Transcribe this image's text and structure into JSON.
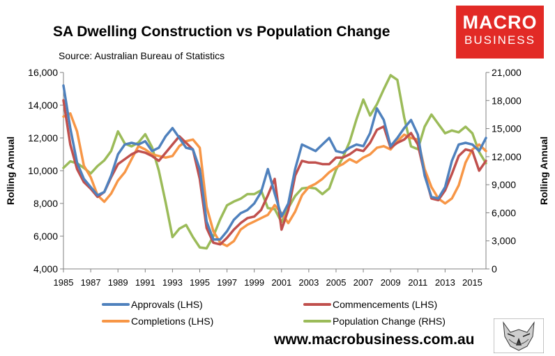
{
  "title": "SA Dwelling Construction vs Population Change",
  "subtitle": "Source: Australian Bureau of Statistics",
  "logo": {
    "line1": "MACRO",
    "line2": "BUSINESS"
  },
  "website": "www.macrobusiness.com.au",
  "colors": {
    "approvals": "#4f81bd",
    "commencements": "#c0504d",
    "completions": "#f79646",
    "population": "#9bbb59",
    "logo_bg": "#e22a26"
  },
  "chart_data": {
    "type": "line",
    "title": "SA Dwelling Construction vs Population Change",
    "xlabel": "",
    "ylabel": "Rolling Annual",
    "y2label": "Rolling Annual",
    "xlim": [
      1985,
      2016
    ],
    "ylim": [
      4000,
      16000
    ],
    "y2lim": [
      0,
      21000
    ],
    "x_ticks": [
      "1985",
      "1987",
      "1989",
      "1991",
      "1993",
      "1995",
      "1997",
      "1999",
      "2001",
      "2003",
      "2005",
      "2007",
      "2009",
      "2011",
      "2013",
      "2015"
    ],
    "y_ticks": [
      "4,000",
      "6,000",
      "8,000",
      "10,000",
      "12,000",
      "14,000",
      "16,000"
    ],
    "y2_ticks": [
      "0",
      "3,000",
      "6,000",
      "9,000",
      "12,000",
      "15,000",
      "18,000",
      "21,000"
    ],
    "series": [
      {
        "name": "Approvals (LHS)",
        "axis": "left",
        "color": "#4f81bd",
        "x": [
          1985,
          1985.5,
          1986,
          1986.5,
          1987,
          1987.5,
          1988,
          1988.5,
          1989,
          1989.5,
          1990,
          1990.5,
          1991,
          1991.5,
          1992,
          1992.5,
          1993,
          1993.5,
          1994,
          1994.5,
          1995,
          1995.5,
          1996,
          1996.5,
          1997,
          1997.5,
          1998,
          1998.5,
          1999,
          1999.5,
          2000,
          2000.5,
          2001,
          2001.5,
          2002,
          2002.5,
          2003,
          2003.5,
          2004,
          2004.5,
          2005,
          2005.5,
          2006,
          2006.5,
          2007,
          2007.5,
          2008,
          2008.5,
          2009,
          2009.5,
          2010,
          2010.5,
          2011,
          2011.5,
          2012,
          2012.5,
          2013,
          2013.5,
          2014,
          2014.5,
          2015,
          2015.5,
          2016
        ],
        "values": [
          15200,
          12600,
          10500,
          9500,
          9000,
          8500,
          8700,
          9700,
          11000,
          11600,
          11700,
          11600,
          11800,
          11200,
          11400,
          12100,
          12600,
          12000,
          11400,
          11300,
          10100,
          6900,
          5800,
          5800,
          6300,
          7000,
          7400,
          7600,
          8000,
          8700,
          10100,
          8600,
          7200,
          8000,
          10100,
          11600,
          11400,
          11200,
          11600,
          12000,
          11200,
          11100,
          11400,
          11600,
          11500,
          12300,
          13800,
          13100,
          11500,
          12000,
          12600,
          13100,
          12200,
          9700,
          8400,
          8300,
          9000,
          10600,
          11600,
          11700,
          11600,
          11200,
          12000
        ]
      },
      {
        "name": "Commencements (LHS)",
        "axis": "left",
        "color": "#c0504d",
        "x": [
          1985,
          1985.5,
          1986,
          1986.5,
          1987,
          1987.5,
          1988,
          1988.5,
          1989,
          1989.5,
          1990,
          1990.5,
          1991,
          1991.5,
          1992,
          1992.5,
          1993,
          1993.5,
          1994,
          1994.5,
          1995,
          1995.5,
          1996,
          1996.5,
          1997,
          1997.5,
          1998,
          1998.5,
          1999,
          1999.5,
          2000,
          2000.5,
          2001,
          2001.5,
          2002,
          2002.5,
          2003,
          2003.5,
          2004,
          2004.5,
          2005,
          2005.5,
          2006,
          2006.5,
          2007,
          2007.5,
          2008,
          2008.5,
          2009,
          2009.5,
          2010,
          2010.5,
          2011,
          2011.5,
          2012,
          2012.5,
          2013,
          2013.5,
          2014,
          2014.5,
          2015,
          2015.5,
          2016
        ],
        "values": [
          14300,
          11600,
          10100,
          9300,
          8900,
          8400,
          8700,
          9600,
          10400,
          10700,
          11000,
          11200,
          11100,
          10900,
          10600,
          11100,
          11600,
          12100,
          11700,
          11300,
          9500,
          6500,
          5600,
          5500,
          5900,
          6400,
          6800,
          7100,
          7200,
          7600,
          8500,
          9500,
          6400,
          7600,
          9700,
          10600,
          10500,
          10500,
          10400,
          10400,
          10800,
          10800,
          11000,
          11300,
          11200,
          11700,
          12500,
          12700,
          11400,
          11700,
          11900,
          12300,
          11600,
          9800,
          8300,
          8200,
          8800,
          9800,
          10900,
          11300,
          11200,
          10000,
          10600
        ]
      },
      {
        "name": "Completions (LHS)",
        "axis": "left",
        "color": "#f79646",
        "x": [
          1985,
          1985.5,
          1986,
          1986.5,
          1987,
          1987.5,
          1988,
          1988.5,
          1989,
          1989.5,
          1990,
          1990.5,
          1991,
          1991.5,
          1992,
          1992.5,
          1993,
          1993.5,
          1994,
          1994.5,
          1995,
          1995.5,
          1996,
          1996.5,
          1997,
          1997.5,
          1998,
          1998.5,
          1999,
          1999.5,
          2000,
          2000.5,
          2001,
          2001.5,
          2002,
          2002.5,
          2003,
          2003.5,
          2004,
          2004.5,
          2005,
          2005.5,
          2006,
          2006.5,
          2007,
          2007.5,
          2008,
          2008.5,
          2009,
          2009.5,
          2010,
          2010.5,
          2011,
          2011.5,
          2012,
          2012.5,
          2013,
          2013.5,
          2014,
          2014.5,
          2015,
          2015.5,
          2016
        ],
        "values": [
          13300,
          13500,
          12400,
          10300,
          9600,
          8500,
          8100,
          8600,
          9400,
          9900,
          10700,
          11500,
          11300,
          11000,
          10900,
          10800,
          10900,
          11500,
          11800,
          11900,
          11400,
          7800,
          6300,
          5600,
          5400,
          5700,
          6400,
          6700,
          6900,
          7100,
          7300,
          7900,
          7400,
          6800,
          7500,
          8500,
          9000,
          9200,
          9500,
          9900,
          10200,
          10400,
          10700,
          10500,
          10800,
          11000,
          11400,
          11500,
          11300,
          11800,
          12200,
          12000,
          11900,
          10100,
          9000,
          8300,
          8000,
          8300,
          9100,
          10500,
          11300,
          11600,
          11200
        ]
      },
      {
        "name": "Population Change (RHS)",
        "axis": "right",
        "color": "#9bbb59",
        "x": [
          1985,
          1985.5,
          1986,
          1986.5,
          1987,
          1987.5,
          1988,
          1988.5,
          1989,
          1989.5,
          1990,
          1990.5,
          1991,
          1991.5,
          1992,
          1992.5,
          1993,
          1993.5,
          1994,
          1994.5,
          1995,
          1995.5,
          1996,
          1996.5,
          1997,
          1997.5,
          1998,
          1998.5,
          1999,
          1999.5,
          2000,
          2000.5,
          2001,
          2001.5,
          2002,
          2002.5,
          2003,
          2003.5,
          2004,
          2004.5,
          2005,
          2005.5,
          2006,
          2006.5,
          2007,
          2007.5,
          2008,
          2008.5,
          2009,
          2009.5,
          2010,
          2010.5,
          2011,
          2011.5,
          2012,
          2012.5,
          2013,
          2013.5,
          2014,
          2014.5,
          2015,
          2015.5,
          2016
        ],
        "values": [
          10800,
          11500,
          11300,
          10800,
          10200,
          11000,
          11600,
          12600,
          14700,
          13400,
          13100,
          13500,
          14400,
          13000,
          10500,
          7100,
          3400,
          4300,
          4700,
          3400,
          2300,
          2200,
          3500,
          5300,
          6800,
          7200,
          7500,
          8000,
          8000,
          8400,
          6500,
          6400,
          5000,
          6500,
          7800,
          8600,
          8700,
          8600,
          8000,
          8600,
          10600,
          11900,
          13600,
          16000,
          18100,
          16400,
          17600,
          19200,
          20700,
          20200,
          16200,
          13100,
          12800,
          15200,
          16500,
          15500,
          14500,
          14800,
          14600,
          15200,
          14500,
          12500,
          11300
        ]
      }
    ]
  }
}
